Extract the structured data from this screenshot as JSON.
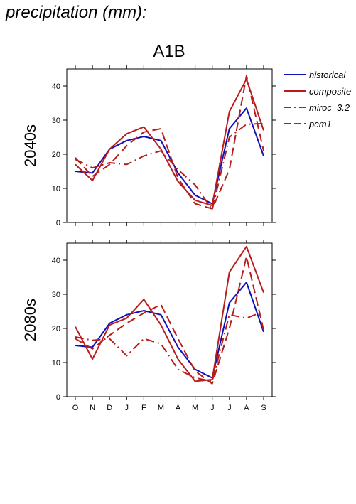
{
  "page_title": "precipitation (mm):",
  "colors": {
    "historical": "#1010b8",
    "model": "#b81c1c",
    "axis": "#000000"
  },
  "chart_data": {
    "type": "line",
    "title": "A1B",
    "categories": [
      "O",
      "N",
      "D",
      "J",
      "F",
      "M",
      "A",
      "M",
      "J",
      "J",
      "A",
      "S"
    ],
    "ylim": [
      0,
      45
    ],
    "yticks": [
      0,
      10,
      20,
      30,
      40
    ],
    "grid": false,
    "legend_position": "top-right, outside plot",
    "legend": [
      {
        "name": "historical",
        "color": "#1010b8",
        "style": "solid"
      },
      {
        "name": "composite",
        "color": "#b81c1c",
        "style": "solid"
      },
      {
        "name": "miroc_3.2",
        "color": "#b81c1c",
        "style": "dashdot"
      },
      {
        "name": "pcm1",
        "color": "#b81c1c",
        "style": "dashed"
      }
    ],
    "panels": [
      {
        "label": "2040s",
        "series": [
          {
            "name": "historical",
            "style": "solid",
            "color": "#1010b8",
            "values": [
              15,
              14.5,
              21.5,
              24,
              25.2,
              24,
              14.5,
              8,
              5.5,
              27.5,
              33.5,
              19.5
            ]
          },
          {
            "name": "composite",
            "style": "solid",
            "color": "#b81c1c",
            "values": [
              17,
              12.3,
              21.5,
              26,
              28,
              21.5,
              12,
              6.5,
              5,
              32.5,
              42,
              27
            ]
          },
          {
            "name": "miroc_3.2",
            "style": "dashdot",
            "color": "#b81c1c",
            "values": [
              18.5,
              16,
              17.5,
              17,
              19.5,
              21,
              15.5,
              11,
              3.8,
              25,
              28.8,
              29
            ]
          },
          {
            "name": "pcm1",
            "style": "dashed",
            "color": "#b81c1c",
            "values": [
              19,
              13.5,
              17,
              22.5,
              26.5,
              27.5,
              13,
              5.5,
              4,
              15.5,
              43,
              21
            ]
          }
        ]
      },
      {
        "label": "2080s",
        "series": [
          {
            "name": "historical",
            "style": "solid",
            "color": "#1010b8",
            "values": [
              15,
              14.5,
              21.5,
              24,
              25.2,
              24,
              14.5,
              8,
              5.5,
              27.5,
              33.5,
              19
            ]
          },
          {
            "name": "composite",
            "style": "solid",
            "color": "#b81c1c",
            "values": [
              20.5,
              11,
              21,
              23,
              28.5,
              21,
              11,
              4.5,
              5,
              36.5,
              44,
              30.5
            ]
          },
          {
            "name": "miroc_3.2",
            "style": "dashdot",
            "color": "#b81c1c",
            "values": [
              17.5,
              16.5,
              17,
              12,
              17,
              15.5,
              8,
              5.5,
              4.5,
              24,
              23,
              25
            ]
          },
          {
            "name": "pcm1",
            "style": "dashed",
            "color": "#b81c1c",
            "values": [
              17,
              14,
              18,
              21.5,
              24.5,
              27,
              17,
              7.5,
              3.8,
              20,
              41,
              19.5
            ]
          }
        ]
      }
    ]
  }
}
